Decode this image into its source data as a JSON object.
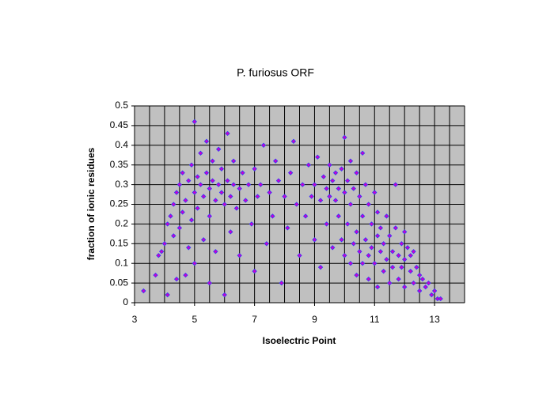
{
  "chart_data": {
    "type": "scatter",
    "title": "P. furiosus ORF",
    "xlabel": "Isoelectric Point",
    "ylabel": "fraction of ionic residues",
    "xlim": [
      3,
      14
    ],
    "xticks": [
      3,
      5,
      7,
      9,
      11,
      13
    ],
    "x_gridlines": [
      3,
      3.5,
      4,
      4.5,
      5,
      5.5,
      6,
      6.5,
      7,
      7.5,
      8,
      8.5,
      9,
      9.5,
      10,
      10.5,
      11,
      11.5,
      12,
      12.5,
      13,
      13.5,
      14
    ],
    "ylim": [
      0,
      0.5
    ],
    "yticks": [
      0,
      0.05,
      0.1,
      0.15,
      0.2,
      0.25,
      0.3,
      0.35,
      0.4,
      0.45,
      0.5
    ],
    "grid": true,
    "color": "#cc00cc",
    "edgecolor": "#3333ff",
    "background": "#c0c0c0",
    "x": [
      3.3,
      3.7,
      3.8,
      3.9,
      4.0,
      4.1,
      4.1,
      4.2,
      4.3,
      4.3,
      4.4,
      4.4,
      4.5,
      4.5,
      4.6,
      4.6,
      4.7,
      4.7,
      4.8,
      4.8,
      4.9,
      4.9,
      5.0,
      5.0,
      5.0,
      5.1,
      5.1,
      5.2,
      5.2,
      5.3,
      5.3,
      5.4,
      5.4,
      5.5,
      5.5,
      5.5,
      5.6,
      5.6,
      5.7,
      5.7,
      5.8,
      5.8,
      5.9,
      5.9,
      6.0,
      6.0,
      6.1,
      6.1,
      6.2,
      6.2,
      6.3,
      6.3,
      6.4,
      6.5,
      6.5,
      6.6,
      6.7,
      6.8,
      6.9,
      7.0,
      7.0,
      7.1,
      7.2,
      7.3,
      7.4,
      7.5,
      7.6,
      7.7,
      7.8,
      7.9,
      8.0,
      8.1,
      8.2,
      8.3,
      8.4,
      8.5,
      8.6,
      8.7,
      8.8,
      8.9,
      9.0,
      9.0,
      9.1,
      9.2,
      9.2,
      9.3,
      9.4,
      9.4,
      9.5,
      9.5,
      9.6,
      9.6,
      9.7,
      9.7,
      9.8,
      9.8,
      9.9,
      9.9,
      10.0,
      10.0,
      10.0,
      10.1,
      10.1,
      10.2,
      10.2,
      10.2,
      10.3,
      10.3,
      10.4,
      10.4,
      10.4,
      10.5,
      10.5,
      10.6,
      10.6,
      10.6,
      10.7,
      10.7,
      10.8,
      10.8,
      10.8,
      10.9,
      10.9,
      11.0,
      11.0,
      11.1,
      11.1,
      11.1,
      11.2,
      11.2,
      11.3,
      11.3,
      11.4,
      11.4,
      11.5,
      11.5,
      11.6,
      11.6,
      11.7,
      11.7,
      11.8,
      11.8,
      11.9,
      11.9,
      12.0,
      12.0,
      12.0,
      12.1,
      12.2,
      12.2,
      12.3,
      12.3,
      12.4,
      12.5,
      12.5,
      12.6,
      12.7,
      12.8,
      12.9,
      13.0,
      13.1,
      13.2
    ],
    "values": [
      0.03,
      0.07,
      0.12,
      0.13,
      0.15,
      0.02,
      0.2,
      0.22,
      0.17,
      0.25,
      0.06,
      0.28,
      0.19,
      0.3,
      0.23,
      0.33,
      0.07,
      0.26,
      0.14,
      0.31,
      0.21,
      0.35,
      0.46,
      0.28,
      0.1,
      0.32,
      0.24,
      0.38,
      0.3,
      0.27,
      0.16,
      0.41,
      0.33,
      0.29,
      0.22,
      0.05,
      0.31,
      0.36,
      0.26,
      0.13,
      0.3,
      0.39,
      0.28,
      0.34,
      0.25,
      0.02,
      0.43,
      0.31,
      0.27,
      0.18,
      0.3,
      0.36,
      0.24,
      0.29,
      0.12,
      0.33,
      0.26,
      0.3,
      0.2,
      0.34,
      0.08,
      0.27,
      0.3,
      0.4,
      0.15,
      0.28,
      0.22,
      0.36,
      0.31,
      0.05,
      0.27,
      0.19,
      0.33,
      0.41,
      0.25,
      0.12,
      0.3,
      0.22,
      0.35,
      0.27,
      0.16,
      0.3,
      0.37,
      0.26,
      0.09,
      0.32,
      0.29,
      0.2,
      0.35,
      0.27,
      0.31,
      0.14,
      0.26,
      0.33,
      0.29,
      0.22,
      0.34,
      0.16,
      0.42,
      0.28,
      0.12,
      0.31,
      0.2,
      0.36,
      0.25,
      0.1,
      0.29,
      0.15,
      0.33,
      0.18,
      0.07,
      0.27,
      0.13,
      0.38,
      0.22,
      0.1,
      0.3,
      0.16,
      0.25,
      0.12,
      0.06,
      0.2,
      0.14,
      0.28,
      0.1,
      0.23,
      0.17,
      0.04,
      0.13,
      0.19,
      0.08,
      0.15,
      0.22,
      0.11,
      0.05,
      0.17,
      0.13,
      0.09,
      0.19,
      0.3,
      0.12,
      0.06,
      0.15,
      0.09,
      0.18,
      0.11,
      0.04,
      0.14,
      0.08,
      0.12,
      0.13,
      0.05,
      0.09,
      0.03,
      0.07,
      0.06,
      0.04,
      0.05,
      0.02,
      0.03,
      0.01,
      0.01
    ]
  }
}
